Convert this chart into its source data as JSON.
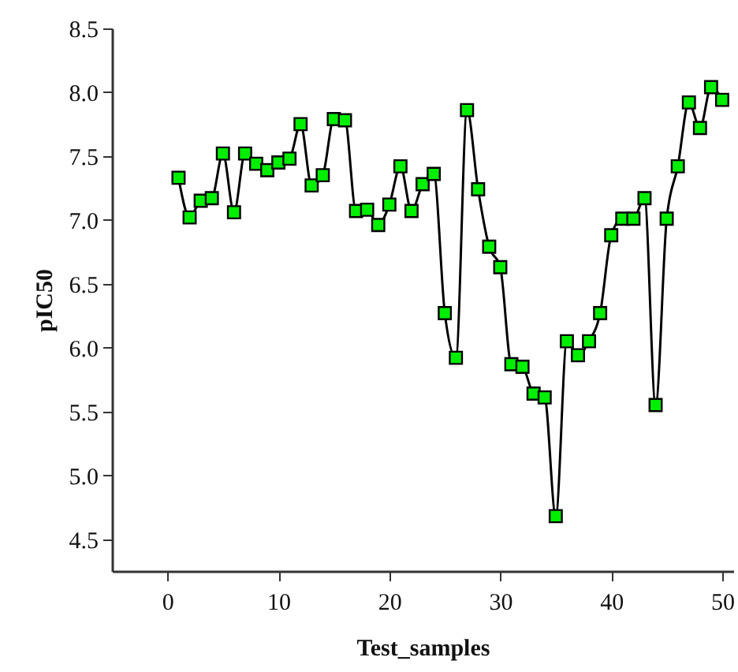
{
  "chart_data": {
    "type": "line",
    "xlabel": "Test_samples",
    "ylabel": "pIC50",
    "x": [
      1,
      2,
      3,
      4,
      5,
      6,
      7,
      8,
      9,
      10,
      11,
      12,
      13,
      14,
      15,
      16,
      17,
      18,
      19,
      20,
      21,
      22,
      23,
      24,
      25,
      26,
      27,
      28,
      29,
      30,
      31,
      32,
      33,
      34,
      35,
      36,
      37,
      38,
      39,
      40,
      41,
      42,
      43,
      44,
      45,
      46,
      47,
      48,
      49,
      50
    ],
    "series": [
      {
        "color": "#000000",
        "values": [
          7.33,
          7.02,
          7.15,
          7.17,
          7.52,
          7.06,
          7.52,
          7.44,
          7.39,
          7.45,
          7.48,
          7.75,
          7.27,
          7.35,
          7.79,
          7.78,
          7.07,
          7.08,
          6.96,
          7.12,
          7.42,
          7.07,
          7.28,
          7.36,
          6.27,
          5.92,
          7.86,
          7.24,
          6.79,
          6.63,
          5.87,
          5.85,
          5.64,
          5.61,
          4.68,
          6.05,
          5.94,
          6.05,
          6.27,
          6.88,
          7.01,
          7.01,
          7.17,
          5.55,
          7.01,
          7.42,
          7.92,
          7.72,
          8.04,
          7.94
        ]
      }
    ],
    "marker": "square",
    "xlim": [
      -5,
      51
    ],
    "xticks": [
      0,
      10,
      20,
      30,
      40,
      50
    ],
    "ylim": [
      4.25,
      8.5
    ],
    "yticks": [
      4.5,
      {
        "value": 5,
        "label": "5.0"
      },
      5.5,
      {
        "value": 6,
        "label": "6.0"
      },
      6.5,
      {
        "value": 7,
        "label": "7.0"
      },
      7.5,
      {
        "value": 8,
        "label": "8.0"
      },
      8.5
    ],
    "grid": false
  }
}
